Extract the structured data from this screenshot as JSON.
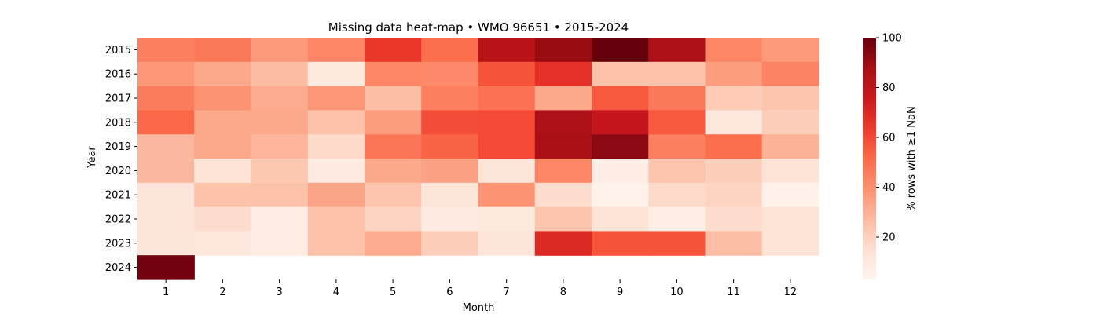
{
  "chart_data": {
    "type": "heatmap",
    "title": "Missing data heat-map • WMO 96651 • 2015-2024",
    "xlabel": "Month",
    "ylabel": "Year",
    "colorbar_label": "% rows with ≥1 NaN",
    "colorbar_ticks": [
      20,
      40,
      60,
      80,
      100
    ],
    "colorbar_range": [
      3,
      100
    ],
    "colormap": "Reds",
    "x_categories": [
      "1",
      "2",
      "3",
      "4",
      "5",
      "6",
      "7",
      "8",
      "9",
      "10",
      "11",
      "12"
    ],
    "y_categories": [
      "2015",
      "2016",
      "2017",
      "2018",
      "2019",
      "2020",
      "2021",
      "2022",
      "2023",
      "2024"
    ],
    "values": [
      [
        45,
        47,
        37,
        43,
        65,
        50,
        82,
        90,
        100,
        85,
        43,
        37
      ],
      [
        38,
        33,
        27,
        10,
        43,
        42,
        57,
        67,
        25,
        25,
        36,
        44
      ],
      [
        46,
        39,
        32,
        38,
        26,
        45,
        49,
        33,
        56,
        47,
        22,
        24
      ],
      [
        52,
        33,
        33,
        25,
        36,
        59,
        60,
        85,
        78,
        56,
        11,
        21
      ],
      [
        28,
        33,
        29,
        17,
        48,
        53,
        60,
        86,
        93,
        45,
        50,
        30
      ],
      [
        28,
        13,
        23,
        9,
        33,
        35,
        12,
        43,
        8,
        24,
        21,
        13
      ],
      [
        12,
        25,
        25,
        34,
        24,
        12,
        39,
        16,
        5,
        17,
        19,
        6
      ],
      [
        12,
        16,
        8,
        25,
        19,
        9,
        10,
        24,
        13,
        7,
        16,
        13
      ],
      [
        12,
        11,
        8,
        25,
        32,
        21,
        12,
        70,
        57,
        57,
        26,
        13
      ],
      [
        98,
        null,
        null,
        null,
        null,
        null,
        null,
        null,
        null,
        null,
        null,
        null
      ]
    ]
  }
}
